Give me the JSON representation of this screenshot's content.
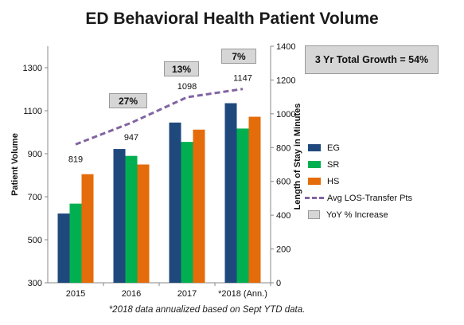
{
  "chart_data": {
    "type": "bar",
    "title": "ED Behavioral Health Patient Volume",
    "footnote": "*2018 data annualized based on Sept YTD data.",
    "categories": [
      "2015",
      "2016",
      "2017",
      "*2018 (Ann.)"
    ],
    "ylabel": "Patient Volume",
    "y2label": "Length of Stay in Minutes",
    "ylim": [
      300,
      1400
    ],
    "yticks": [
      "300",
      "500",
      "700",
      "900",
      "1100",
      "1300"
    ],
    "y2lim": [
      0,
      1400
    ],
    "y2ticks": [
      "0",
      "200",
      "400",
      "600",
      "800",
      "1000",
      "1200",
      "1400"
    ],
    "grid": false,
    "legend_position": "right",
    "series": [
      {
        "name": "EG",
        "type": "bar",
        "color": "#1f497d",
        "values": [
          622,
          922,
          1045,
          1135
        ]
      },
      {
        "name": "SR",
        "type": "bar",
        "color": "#00b050",
        "values": [
          668,
          890,
          955,
          1017
        ]
      },
      {
        "name": "HS",
        "type": "bar",
        "color": "#e46c0a",
        "values": [
          805,
          850,
          1012,
          1072
        ]
      },
      {
        "name": "Avg LOS-Transfer Pts",
        "type": "line",
        "axis": "y2",
        "color": "#8064a2",
        "values": [
          819,
          947,
          1098,
          1147
        ],
        "labels": [
          "819",
          "947",
          "1098",
          "1147"
        ]
      }
    ],
    "yoy": {
      "legend_label": "YoY % Increase",
      "values": [
        "27%",
        "13%",
        "7%"
      ]
    },
    "total_growth": "3 Yr Total Growth = 54%"
  }
}
